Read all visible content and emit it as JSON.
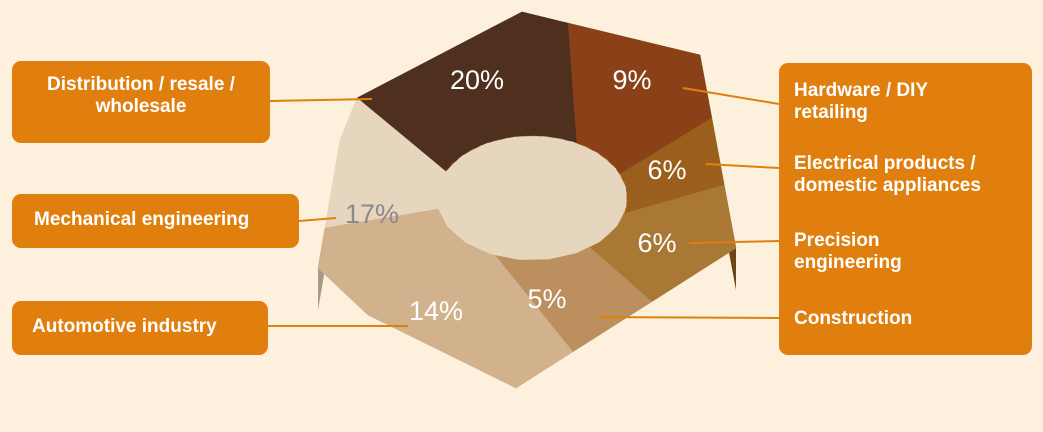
{
  "chart_data": {
    "type": "pie",
    "style": "3d-donut",
    "unit": "%",
    "segments": [
      {
        "label": "Distribution / resale / wholesale",
        "value": 20,
        "display": "20%",
        "color": "#4f2f1e"
      },
      {
        "label": "Hardware / DIY retailing",
        "value": 9,
        "display": "9%",
        "color": "#8a4118"
      },
      {
        "label": "Electrical products / domestic appliances",
        "value": 6,
        "display": "6%",
        "color": "#9a5f1c"
      },
      {
        "label": "Precision engineering",
        "value": 6,
        "display": "6%",
        "color": "#a87834"
      },
      {
        "label": "Construction",
        "value": 5,
        "display": "5%",
        "color": "#bb8f5e"
      },
      {
        "label": "Automotive industry",
        "value": 14,
        "display": "14%",
        "color": "#d2b28c"
      },
      {
        "label": "Mechanical engineering",
        "value": 17,
        "display": "17%",
        "color": "#e7d6be"
      }
    ]
  },
  "callouts": {
    "distribution": [
      "Distribution / resale /",
      "wholesale"
    ],
    "mechanical": "Mechanical engineering",
    "automotive": "Automotive industry",
    "hardware": [
      "Hardware / DIY",
      "retailing"
    ],
    "electrical": [
      "Electrical products /",
      "domestic appliances"
    ],
    "precision": [
      "Precision",
      "engineering"
    ],
    "construction": "Construction"
  },
  "colors": {
    "background": "#fdf1de",
    "callout": "#e07f0e",
    "leader": "#e07f0e"
  }
}
